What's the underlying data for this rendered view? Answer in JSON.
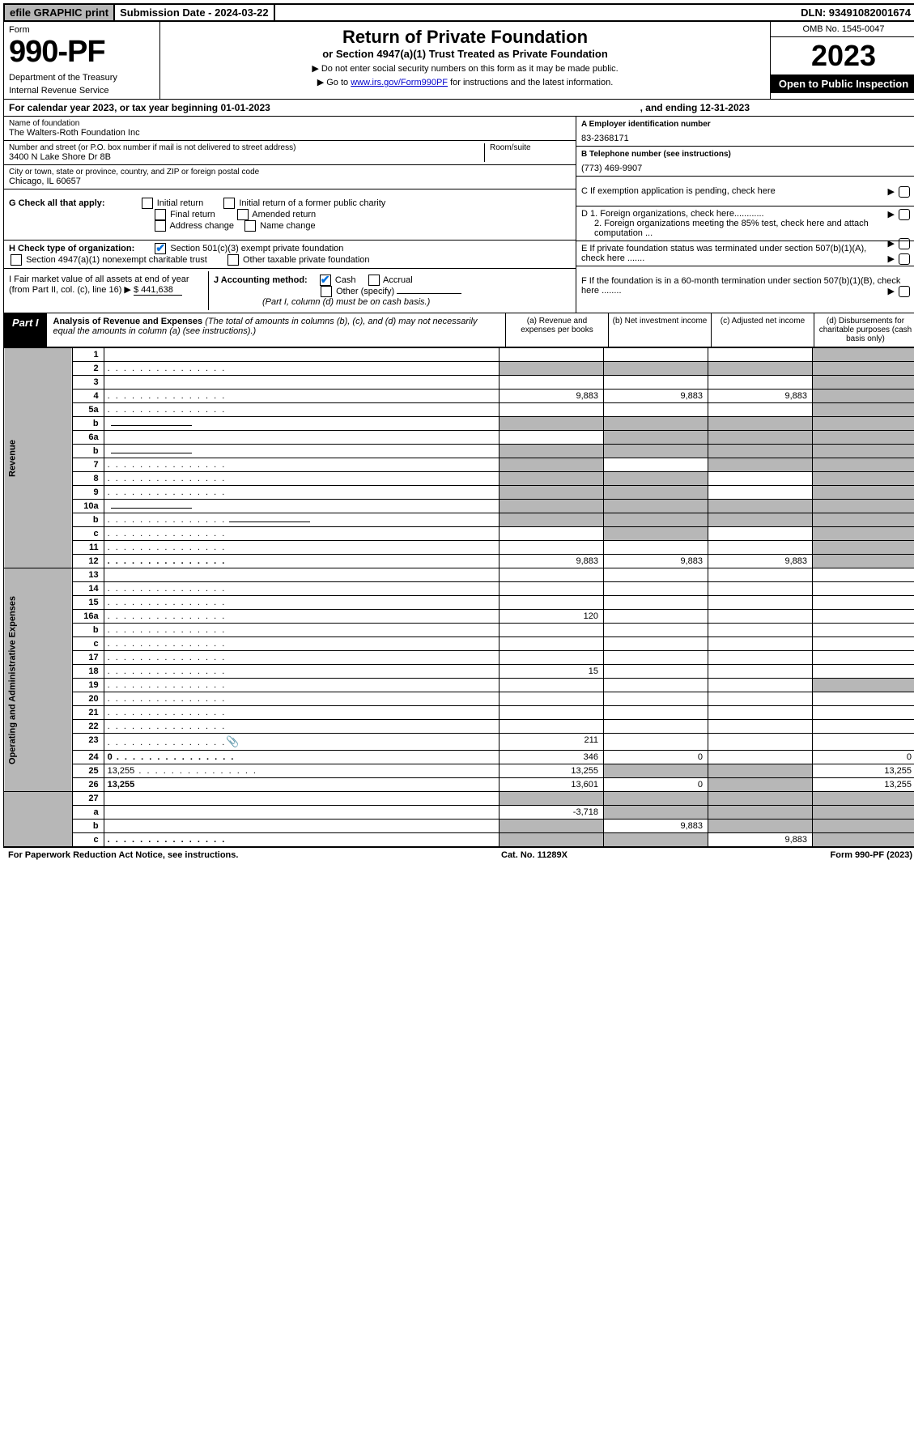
{
  "topbar": {
    "efile": "efile GRAPHIC print",
    "submission": "Submission Date - 2024-03-22",
    "dln": "DLN: 93491082001674"
  },
  "header": {
    "form_label": "Form",
    "form_num": "990-PF",
    "dept1": "Department of the Treasury",
    "dept2": "Internal Revenue Service",
    "title": "Return of Private Foundation",
    "subtitle": "or Section 4947(a)(1) Trust Treated as Private Foundation",
    "note1": "▶ Do not enter social security numbers on this form as it may be made public.",
    "note2_pre": "▶ Go to ",
    "note2_link": "www.irs.gov/Form990PF",
    "note2_post": " for instructions and the latest information.",
    "omb": "OMB No. 1545-0047",
    "year": "2023",
    "inspection": "Open to Public Inspection"
  },
  "cal": {
    "text_a": "For calendar year 2023, or tax year beginning 01-01-2023",
    "text_b": ", and ending 12-31-2023"
  },
  "info": {
    "name_label": "Name of foundation",
    "name": "The Walters-Roth Foundation Inc",
    "addr_label": "Number and street (or P.O. box number if mail is not delivered to street address)",
    "addr": "3400 N Lake Shore Dr 8B",
    "room_label": "Room/suite",
    "city_label": "City or town, state or province, country, and ZIP or foreign postal code",
    "city": "Chicago, IL  60657",
    "ein_label": "A Employer identification number",
    "ein": "83-2368171",
    "tel_label": "B Telephone number (see instructions)",
    "tel": "(773) 469-9907",
    "c_label": "C If exemption application is pending, check here",
    "g_label": "G Check all that apply:",
    "g_opts": [
      "Initial return",
      "Initial return of a former public charity",
      "Final return",
      "Amended return",
      "Address change",
      "Name change"
    ],
    "d1": "D 1. Foreign organizations, check here............",
    "d2": "2. Foreign organizations meeting the 85% test, check here and attach computation ...",
    "h_label": "H Check type of organization:",
    "h1": "Section 501(c)(3) exempt private foundation",
    "h2": "Section 4947(a)(1) nonexempt charitable trust",
    "h3": "Other taxable private foundation",
    "e_label": "E If private foundation status was terminated under section 507(b)(1)(A), check here .......",
    "i_label": "I Fair market value of all assets at end of year (from Part II, col. (c), line 16) ▶",
    "i_val": "$  441,638",
    "j_label": "J Accounting method:",
    "j_cash": "Cash",
    "j_accrual": "Accrual",
    "j_other": "Other (specify)",
    "j_note": "(Part I, column (d) must be on cash basis.)",
    "f_label": "F If the foundation is in a 60-month termination under section 507(b)(1)(B), check here ........"
  },
  "part1": {
    "label": "Part I",
    "title": "Analysis of Revenue and Expenses",
    "title_note": "(The total of amounts in columns (b), (c), and (d) may not necessarily equal the amounts in column (a) (see instructions).)",
    "col_a": "(a) Revenue and expenses per books",
    "col_b": "(b) Net investment income",
    "col_c": "(c) Adjusted net income",
    "col_d": "(d) Disbursements for charitable purposes (cash basis only)"
  },
  "sections": {
    "revenue": "Revenue",
    "expenses": "Operating and Administrative Expenses"
  },
  "rows": [
    {
      "n": "1",
      "d": "",
      "a": "",
      "b": "",
      "c": "",
      "shade": [
        "d"
      ]
    },
    {
      "n": "2",
      "d": "",
      "a": "",
      "b": "",
      "c": "",
      "shade": [
        "a",
        "b",
        "c",
        "d"
      ],
      "dots": true
    },
    {
      "n": "3",
      "d": "",
      "a": "",
      "b": "",
      "c": "",
      "shade": [
        "d"
      ]
    },
    {
      "n": "4",
      "d": "",
      "a": "9,883",
      "b": "9,883",
      "c": "9,883",
      "shade": [
        "d"
      ],
      "dots": true
    },
    {
      "n": "5a",
      "d": "",
      "a": "",
      "b": "",
      "c": "",
      "shade": [
        "d"
      ],
      "dots": true
    },
    {
      "n": "b",
      "d": "",
      "a": "",
      "b": "",
      "c": "",
      "shade": [
        "a",
        "b",
        "c",
        "d"
      ],
      "uline": true
    },
    {
      "n": "6a",
      "d": "",
      "a": "",
      "b": "",
      "c": "",
      "shade": [
        "b",
        "c",
        "d"
      ]
    },
    {
      "n": "b",
      "d": "",
      "a": "",
      "b": "",
      "c": "",
      "shade": [
        "a",
        "b",
        "c",
        "d"
      ],
      "uline": true
    },
    {
      "n": "7",
      "d": "",
      "a": "",
      "b": "",
      "c": "",
      "shade": [
        "a",
        "c",
        "d"
      ],
      "dots": true
    },
    {
      "n": "8",
      "d": "",
      "a": "",
      "b": "",
      "c": "",
      "shade": [
        "a",
        "b",
        "d"
      ],
      "dots": true
    },
    {
      "n": "9",
      "d": "",
      "a": "",
      "b": "",
      "c": "",
      "shade": [
        "a",
        "b",
        "d"
      ],
      "dots": true
    },
    {
      "n": "10a",
      "d": "",
      "a": "",
      "b": "",
      "c": "",
      "shade": [
        "a",
        "b",
        "c",
        "d"
      ],
      "uline": true
    },
    {
      "n": "b",
      "d": "",
      "a": "",
      "b": "",
      "c": "",
      "shade": [
        "a",
        "b",
        "c",
        "d"
      ],
      "uline": true,
      "dots": true
    },
    {
      "n": "c",
      "d": "",
      "a": "",
      "b": "",
      "c": "",
      "shade": [
        "b",
        "d"
      ],
      "dots": true
    },
    {
      "n": "11",
      "d": "",
      "a": "",
      "b": "",
      "c": "",
      "shade": [
        "d"
      ],
      "dots": true
    },
    {
      "n": "12",
      "d": "",
      "a": "9,883",
      "b": "9,883",
      "c": "9,883",
      "shade": [
        "d"
      ],
      "bold": true,
      "dots": true
    }
  ],
  "exp_rows": [
    {
      "n": "13",
      "d": "",
      "a": "",
      "b": "",
      "c": ""
    },
    {
      "n": "14",
      "d": "",
      "a": "",
      "b": "",
      "c": "",
      "dots": true
    },
    {
      "n": "15",
      "d": "",
      "a": "",
      "b": "",
      "c": "",
      "dots": true
    },
    {
      "n": "16a",
      "d": "",
      "a": "120",
      "b": "",
      "c": "",
      "dots": true
    },
    {
      "n": "b",
      "d": "",
      "a": "",
      "b": "",
      "c": "",
      "dots": true
    },
    {
      "n": "c",
      "d": "",
      "a": "",
      "b": "",
      "c": "",
      "dots": true
    },
    {
      "n": "17",
      "d": "",
      "a": "",
      "b": "",
      "c": "",
      "dots": true
    },
    {
      "n": "18",
      "d": "",
      "a": "15",
      "b": "",
      "c": "",
      "dots": true
    },
    {
      "n": "19",
      "d": "",
      "a": "",
      "b": "",
      "c": "",
      "shade": [
        "d"
      ],
      "dots": true
    },
    {
      "n": "20",
      "d": "",
      "a": "",
      "b": "",
      "c": "",
      "dots": true
    },
    {
      "n": "21",
      "d": "",
      "a": "",
      "b": "",
      "c": "",
      "dots": true
    },
    {
      "n": "22",
      "d": "",
      "a": "",
      "b": "",
      "c": "",
      "dots": true
    },
    {
      "n": "23",
      "d": "",
      "a": "211",
      "b": "",
      "c": "",
      "dots": true,
      "icon": true
    },
    {
      "n": "24",
      "d": "0",
      "a": "346",
      "b": "0",
      "c": "",
      "bold": true,
      "dots": true
    },
    {
      "n": "25",
      "d": "13,255",
      "a": "13,255",
      "b": "",
      "c": "",
      "shade": [
        "b",
        "c"
      ],
      "dots": true
    },
    {
      "n": "26",
      "d": "13,255",
      "a": "13,601",
      "b": "0",
      "c": "",
      "shade": [
        "c"
      ],
      "bold": true
    }
  ],
  "sub_rows": [
    {
      "n": "27",
      "d": "",
      "a": "",
      "b": "",
      "c": "",
      "shade": [
        "a",
        "b",
        "c",
        "d"
      ]
    },
    {
      "n": "a",
      "d": "",
      "a": "-3,718",
      "b": "",
      "c": "",
      "shade": [
        "b",
        "c",
        "d"
      ],
      "bold": true
    },
    {
      "n": "b",
      "d": "",
      "a": "",
      "b": "9,883",
      "c": "",
      "shade": [
        "a",
        "c",
        "d"
      ],
      "bold": true
    },
    {
      "n": "c",
      "d": "",
      "a": "",
      "b": "",
      "c": "9,883",
      "shade": [
        "a",
        "b",
        "d"
      ],
      "bold": true,
      "dots": true
    }
  ],
  "footer": {
    "left": "For Paperwork Reduction Act Notice, see instructions.",
    "mid": "Cat. No. 11289X",
    "right": "Form 990-PF (2023)"
  }
}
